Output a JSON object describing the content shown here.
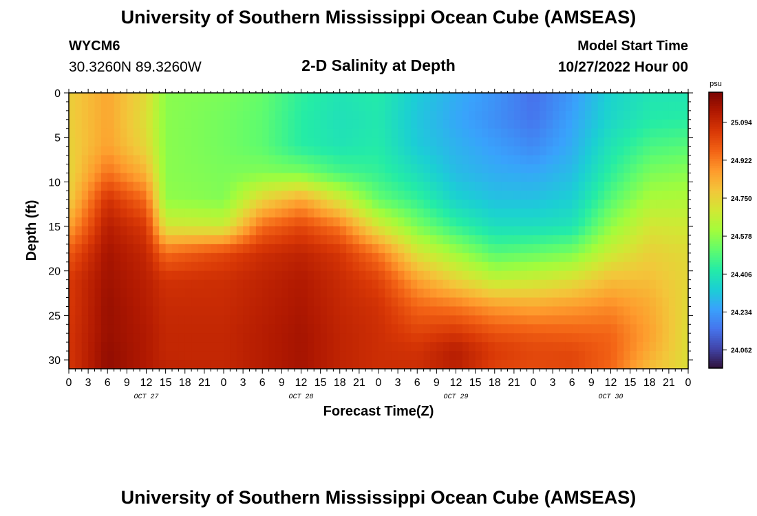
{
  "header": {
    "title": "University of Southern Mississippi Ocean Cube (AMSEAS)",
    "station_id": "WYCM6",
    "station_coords": "30.3260N  89.3260W",
    "plot_title": "2-D Salinity at Depth",
    "model_start_label": "Model Start Time",
    "model_start_value": "10/27/2022 Hour 00"
  },
  "footer": {
    "repeated_title": "University of Southern Mississippi Ocean Cube (AMSEAS)"
  },
  "chart_data": {
    "type": "heatmap",
    "title": "2-D Salinity at Depth",
    "xlabel": "Forecast Time(Z)",
    "ylabel": "Depth (ft)",
    "xlim": [
      0,
      96
    ],
    "ylim": [
      31,
      0
    ],
    "x_tick_labels": [
      "0",
      "3",
      "6",
      "9",
      "12",
      "15",
      "18",
      "21",
      "0",
      "3",
      "6",
      "9",
      "12",
      "15",
      "18",
      "21",
      "0",
      "3",
      "6",
      "9",
      "12",
      "15",
      "18",
      "21",
      "0",
      "3",
      "6",
      "9",
      "12",
      "15",
      "18",
      "21",
      "0"
    ],
    "y_ticks": [
      0,
      5,
      10,
      15,
      20,
      25,
      30
    ],
    "y_tick_labels": [
      "0",
      "5",
      "10",
      "15",
      "20",
      "25",
      "30"
    ],
    "day_labels": [
      {
        "label": "OCT 27",
        "hour": 12
      },
      {
        "label": "OCT 28",
        "hour": 36
      },
      {
        "label": "OCT 29",
        "hour": 60
      },
      {
        "label": "OCT 30",
        "hour": 84
      }
    ],
    "colorbar": {
      "unit": "psu",
      "range": [
        23.98,
        25.23
      ],
      "ticks": [
        25.094,
        24.922,
        24.75,
        24.578,
        24.406,
        24.234,
        24.062
      ],
      "tick_labels": [
        "25.094",
        "24.922",
        "24.750",
        "24.578",
        "24.406",
        "24.234",
        "24.062"
      ],
      "colors": [
        "#30123b",
        "#4145ab",
        "#4675ed",
        "#39a2fc",
        "#1bcfd4",
        "#24eca6",
        "#61fc6c",
        "#a4fc3b",
        "#d1e834",
        "#f3c63a",
        "#fe9b2d",
        "#f36315",
        "#d93806",
        "#b11901",
        "#7a0402"
      ]
    },
    "series": [
      {
        "name": "hour 0",
        "x": 0,
        "values": [
          24.76,
          24.76,
          24.75,
          24.74,
          24.76,
          24.85,
          24.98,
          25.05,
          25.05,
          25.06,
          25.06,
          25.06
        ]
      },
      {
        "name": "hour 6",
        "x": 6,
        "values": [
          24.85,
          24.85,
          24.86,
          24.94,
          25.07,
          25.13,
          25.16,
          25.17,
          25.18,
          25.18,
          25.19,
          25.19
        ]
      },
      {
        "name": "hour 12",
        "x": 12,
        "values": [
          24.73,
          24.72,
          24.74,
          24.82,
          24.95,
          25.05,
          25.1,
          25.12,
          25.13,
          25.14,
          25.14,
          25.14
        ]
      },
      {
        "name": "hour 15",
        "x": 15,
        "values": [
          24.57,
          24.57,
          24.57,
          24.57,
          24.58,
          24.7,
          24.95,
          25.07,
          25.09,
          25.1,
          25.1,
          25.11
        ]
      },
      {
        "name": "hour 24",
        "x": 24,
        "values": [
          24.55,
          24.54,
          24.54,
          24.55,
          24.56,
          24.68,
          25.02,
          25.08,
          25.09,
          25.1,
          25.1,
          25.1
        ]
      },
      {
        "name": "hour 30",
        "x": 30,
        "values": [
          24.52,
          24.51,
          24.51,
          24.56,
          24.75,
          24.95,
          25.08,
          25.11,
          25.12,
          25.13,
          25.13,
          25.13
        ]
      },
      {
        "name": "hour 36",
        "x": 36,
        "values": [
          24.44,
          24.43,
          24.43,
          24.55,
          24.85,
          25.02,
          25.11,
          25.14,
          25.15,
          25.16,
          25.16,
          25.16
        ]
      },
      {
        "name": "hour 42",
        "x": 42,
        "values": [
          24.4,
          24.39,
          24.4,
          24.48,
          24.7,
          24.93,
          25.06,
          25.09,
          25.1,
          25.11,
          25.11,
          25.11
        ]
      },
      {
        "name": "hour 48",
        "x": 48,
        "values": [
          24.42,
          24.41,
          24.42,
          24.45,
          24.52,
          24.7,
          24.93,
          25.03,
          25.07,
          25.08,
          25.08,
          25.08
        ]
      },
      {
        "name": "hour 54",
        "x": 54,
        "values": [
          24.33,
          24.32,
          24.33,
          24.38,
          24.45,
          24.55,
          24.71,
          24.86,
          24.96,
          25.03,
          25.07,
          25.08
        ]
      },
      {
        "name": "hour 60",
        "x": 60,
        "values": [
          24.27,
          24.26,
          24.28,
          24.3,
          24.35,
          24.45,
          24.6,
          24.75,
          24.93,
          25.06,
          25.13,
          25.12
        ]
      },
      {
        "name": "hour 66",
        "x": 66,
        "values": [
          24.22,
          24.21,
          24.24,
          24.27,
          24.31,
          24.38,
          24.5,
          24.66,
          24.87,
          25.0,
          25.05,
          25.03
        ]
      },
      {
        "name": "hour 72",
        "x": 72,
        "values": [
          24.15,
          24.16,
          24.2,
          24.26,
          24.31,
          24.38,
          24.52,
          24.68,
          24.85,
          24.98,
          25.02,
          25.01
        ]
      },
      {
        "name": "hour 78",
        "x": 78,
        "values": [
          24.23,
          24.25,
          24.27,
          24.3,
          24.34,
          24.4,
          24.55,
          24.72,
          24.87,
          24.97,
          25.02,
          25.02
        ]
      },
      {
        "name": "hour 84",
        "x": 84,
        "values": [
          24.35,
          24.36,
          24.4,
          24.44,
          24.5,
          24.58,
          24.68,
          24.8,
          24.9,
          24.96,
          24.97,
          24.96
        ]
      },
      {
        "name": "hour 90",
        "x": 90,
        "values": [
          24.4,
          24.42,
          24.48,
          24.55,
          24.62,
          24.7,
          24.76,
          24.8,
          24.84,
          24.86,
          24.84,
          24.8
        ]
      },
      {
        "name": "hour 96",
        "x": 96,
        "values": [
          24.4,
          24.43,
          24.5,
          24.57,
          24.63,
          24.69,
          24.73,
          24.74,
          24.73,
          24.72,
          24.72,
          24.72
        ]
      }
    ],
    "depths": [
      0,
      3,
      6,
      9,
      12,
      15,
      18,
      21,
      24,
      27,
      29,
      31
    ]
  }
}
